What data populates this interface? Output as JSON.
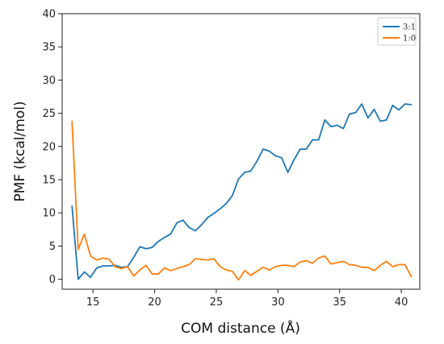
{
  "chart_data": {
    "type": "line",
    "title": "",
    "xlabel": "COM distance (Å)",
    "ylabel": "PMF (kcal/mol)",
    "xlim": [
      12.5,
      41.5
    ],
    "ylim": [
      -1.5,
      40
    ],
    "xticks": [
      15,
      20,
      25,
      30,
      35,
      40
    ],
    "yticks": [
      0,
      5,
      10,
      15,
      20,
      25,
      30,
      35,
      40
    ],
    "grid": false,
    "legend_position": "top-right",
    "series": [
      {
        "name": "3:1",
        "color": "#1f77b4",
        "x": [
          13.3,
          13.8,
          14.3,
          14.8,
          15.3,
          15.8,
          16.3,
          16.8,
          17.3,
          17.8,
          18.3,
          18.8,
          19.3,
          19.8,
          20.3,
          20.8,
          21.3,
          21.8,
          22.3,
          22.8,
          23.3,
          23.8,
          24.3,
          24.8,
          25.3,
          25.8,
          26.3,
          26.8,
          27.3,
          27.8,
          28.3,
          28.8,
          29.3,
          29.8,
          30.3,
          30.8,
          31.3,
          31.8,
          32.3,
          32.8,
          33.3,
          33.8,
          34.3,
          34.8,
          35.3,
          35.8,
          36.3,
          36.8,
          37.3,
          37.8,
          38.3,
          38.8,
          39.3,
          39.8,
          40.3,
          40.8
        ],
        "values": [
          11.0,
          0.0,
          1.1,
          0.3,
          1.7,
          2.0,
          2.0,
          2.1,
          1.8,
          1.9,
          3.3,
          4.9,
          4.6,
          4.8,
          5.7,
          6.3,
          6.8,
          8.5,
          8.9,
          7.8,
          7.3,
          8.2,
          9.3,
          9.9,
          10.6,
          11.4,
          12.6,
          15.1,
          16.1,
          16.3,
          17.8,
          19.6,
          19.3,
          18.6,
          18.3,
          16.1,
          18.0,
          19.6,
          19.6,
          21.0,
          21.0,
          24.0,
          23.0,
          23.2,
          22.7,
          24.9,
          25.1,
          26.4,
          24.3,
          25.6,
          23.8,
          24.0,
          26.2,
          25.5,
          26.4,
          26.3
        ]
      },
      {
        "name": "1:0",
        "color": "#ff7f0e",
        "x": [
          13.3,
          13.8,
          14.3,
          14.8,
          15.3,
          15.8,
          16.3,
          16.8,
          17.3,
          17.8,
          18.3,
          18.8,
          19.3,
          19.8,
          20.3,
          20.8,
          21.3,
          21.8,
          22.3,
          22.8,
          23.3,
          23.8,
          24.3,
          24.8,
          25.3,
          25.8,
          26.3,
          26.8,
          27.3,
          27.8,
          28.3,
          28.8,
          29.3,
          29.8,
          30.3,
          30.8,
          31.3,
          31.8,
          32.3,
          32.8,
          33.3,
          33.8,
          34.3,
          34.8,
          35.3,
          35.8,
          36.3,
          36.8,
          37.3,
          37.8,
          38.3,
          38.8,
          39.3,
          39.8,
          40.3,
          40.8
        ],
        "values": [
          23.8,
          4.5,
          6.8,
          3.5,
          2.9,
          3.2,
          3.0,
          1.9,
          1.6,
          1.9,
          0.5,
          1.4,
          2.1,
          0.8,
          0.8,
          1.7,
          1.3,
          1.6,
          1.9,
          2.2,
          3.1,
          3.0,
          2.9,
          3.1,
          1.9,
          1.4,
          1.2,
          -0.1,
          1.3,
          0.6,
          1.2,
          1.8,
          1.4,
          1.9,
          2.1,
          2.1,
          1.9,
          2.6,
          2.8,
          2.4,
          3.2,
          3.5,
          2.3,
          2.5,
          2.7,
          2.2,
          2.1,
          1.8,
          1.8,
          1.3,
          2.1,
          2.7,
          1.9,
          2.2,
          2.2,
          0.4
        ]
      }
    ]
  }
}
